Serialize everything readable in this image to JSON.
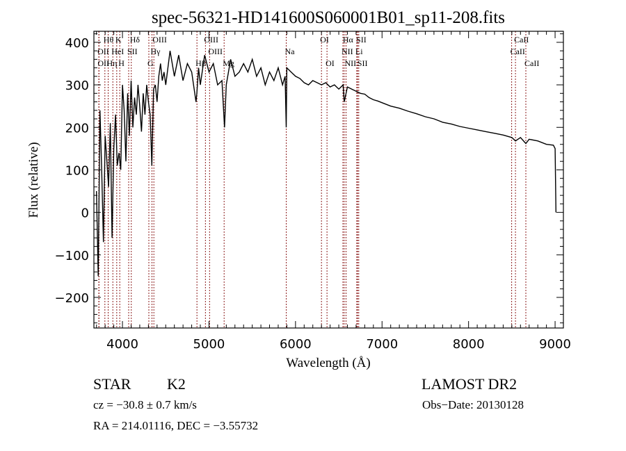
{
  "chart_data": {
    "type": "line",
    "title": "spec-56321-HD141600S060001B01_sp11-208.fits",
    "xlabel": "Wavelength (Å)",
    "ylabel": "Flux (relative)",
    "xlim": [
      3670,
      9096
    ],
    "ylim": [
      -272,
      426
    ],
    "xticks": [
      4000,
      5000,
      6000,
      7000,
      8000,
      9000
    ],
    "xtick_labels": [
      "4000",
      "5000",
      "6000",
      "7000",
      "8000",
      "9000"
    ],
    "yticks": [
      -200,
      -100,
      0,
      100,
      200,
      300,
      400
    ],
    "ytick_labels": [
      "−200",
      "−100",
      "0",
      "100",
      "200",
      "300",
      "400"
    ],
    "grid": false,
    "line_color": "#000000",
    "marker_color": "#8b1a1a",
    "series": [
      {
        "name": "flux",
        "x": [
          3700,
          3720,
          3740,
          3760,
          3780,
          3800,
          3820,
          3840,
          3860,
          3880,
          3900,
          3920,
          3940,
          3960,
          3980,
          4000,
          4020,
          4040,
          4060,
          4080,
          4100,
          4120,
          4140,
          4160,
          4180,
          4200,
          4220,
          4240,
          4260,
          4280,
          4300,
          4320,
          4340,
          4360,
          4380,
          4400,
          4420,
          4440,
          4460,
          4480,
          4500,
          4550,
          4600,
          4650,
          4700,
          4750,
          4800,
          4850,
          4860,
          4880,
          4900,
          4950,
          5000,
          5050,
          5100,
          5150,
          5180,
          5200,
          5250,
          5300,
          5350,
          5400,
          5450,
          5500,
          5550,
          5600,
          5650,
          5700,
          5750,
          5800,
          5850,
          5880,
          5893,
          5900,
          5950,
          6000,
          6050,
          6100,
          6150,
          6200,
          6250,
          6300,
          6350,
          6400,
          6450,
          6500,
          6550,
          6563,
          6600,
          6650,
          6700,
          6750,
          6800,
          6850,
          6900,
          6950,
          7000,
          7100,
          7200,
          7300,
          7400,
          7500,
          7600,
          7700,
          7800,
          7900,
          8000,
          8100,
          8200,
          8300,
          8400,
          8500,
          8542,
          8600,
          8662,
          8700,
          8800,
          8900,
          8980,
          9000,
          9010
        ],
        "y": [
          50,
          -150,
          240,
          100,
          -70,
          180,
          120,
          60,
          210,
          -60,
          150,
          230,
          110,
          140,
          100,
          300,
          240,
          120,
          280,
          180,
          310,
          200,
          270,
          230,
          300,
          250,
          190,
          280,
          230,
          300,
          260,
          230,
          110,
          290,
          300,
          260,
          320,
          350,
          310,
          330,
          300,
          380,
          320,
          370,
          310,
          350,
          330,
          260,
          280,
          340,
          300,
          370,
          330,
          350,
          300,
          310,
          200,
          300,
          360,
          320,
          330,
          350,
          330,
          360,
          320,
          340,
          300,
          330,
          310,
          340,
          300,
          320,
          200,
          340,
          330,
          320,
          315,
          305,
          300,
          310,
          305,
          300,
          305,
          295,
          300,
          290,
          300,
          260,
          295,
          290,
          285,
          280,
          278,
          270,
          265,
          262,
          258,
          250,
          245,
          238,
          232,
          225,
          220,
          212,
          208,
          202,
          198,
          194,
          190,
          186,
          182,
          176,
          168,
          176,
          162,
          172,
          168,
          160,
          158,
          150,
          0
        ]
      }
    ],
    "line_markers": [
      {
        "label": "Hθ",
        "x": 3797
      },
      {
        "label": "K",
        "x": 3934
      },
      {
        "label": "Hδ",
        "x": 4102
      },
      {
        "label": "OIII",
        "x": 4363
      },
      {
        "label": "OIII",
        "x": 4959
      },
      {
        "label": "OII",
        "x": 3727
      },
      {
        "label": "HeI",
        "x": 3889
      },
      {
        "label": "SII",
        "x": 4072
      },
      {
        "label": "Hγ",
        "x": 4341
      },
      {
        "label": "OIII",
        "x": 5007
      },
      {
        "label": "OII",
        "x": 3729
      },
      {
        "label": "Hη",
        "x": 3835
      },
      {
        "label": "H",
        "x": 3969
      },
      {
        "label": "G",
        "x": 4305
      },
      {
        "label": "Hβ",
        "x": 4861
      },
      {
        "label": "Mg",
        "x": 5175
      },
      {
        "label": "Na",
        "x": 5893
      },
      {
        "label": "OI",
        "x": 6300
      },
      {
        "label": "OI",
        "x": 6364
      },
      {
        "label": "Hα",
        "x": 6563
      },
      {
        "label": "SII",
        "x": 6717
      },
      {
        "label": "NII",
        "x": 6548
      },
      {
        "label": "Li",
        "x": 6708
      },
      {
        "label": "NII",
        "x": 6584
      },
      {
        "label": "SII",
        "x": 6731
      },
      {
        "label": "CaII",
        "x": 8542
      },
      {
        "label": "CaII",
        "x": 8498
      },
      {
        "label": "CaII",
        "x": 8662
      }
    ]
  },
  "info": {
    "class_label": "STAR",
    "subclass_label": "K2",
    "survey": "LAMOST DR2",
    "cz": "cz = −30.8 ± 0.7 km/s",
    "obs_date": "Obs−Date: 20130128",
    "coords": "RA = 214.01116, DEC =  −3.55732"
  }
}
